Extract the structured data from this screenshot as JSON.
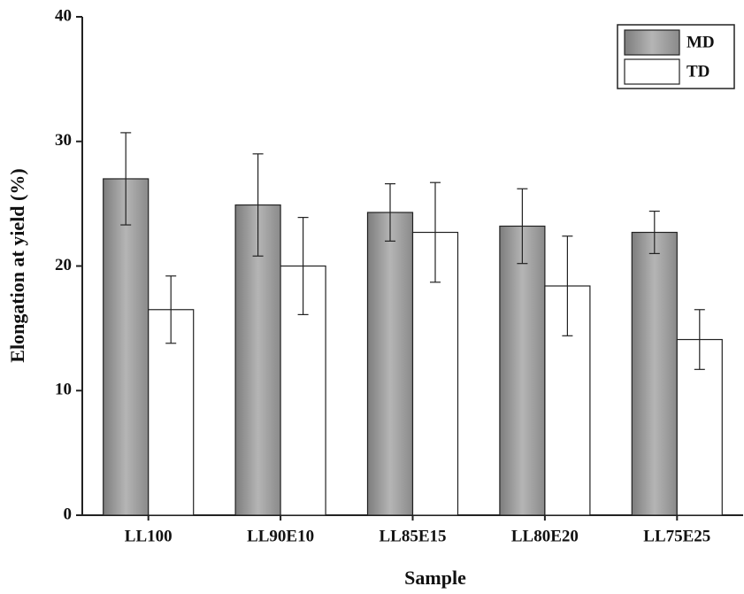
{
  "chart_data": {
    "type": "bar",
    "x_label": "Sample",
    "y_label": "Elongation at yield (%)",
    "categories": [
      "LL100",
      "LL90E10",
      "LL85E15",
      "LL80E20",
      "LL75E25"
    ],
    "series": [
      {
        "name": "MD",
        "color": "#9a9a9a",
        "values": [
          27.0,
          24.9,
          24.3,
          23.2,
          22.7
        ],
        "errors": [
          3.7,
          4.1,
          2.3,
          3.0,
          1.7
        ]
      },
      {
        "name": "TD",
        "color": "#ffffff",
        "values": [
          16.5,
          20.0,
          22.7,
          18.4,
          14.1
        ],
        "errors": [
          2.7,
          3.9,
          4.0,
          4.0,
          2.4
        ]
      }
    ],
    "ylim": [
      0,
      40
    ],
    "yticks": [
      0,
      10,
      20,
      30,
      40
    ],
    "legend": "upper right"
  }
}
